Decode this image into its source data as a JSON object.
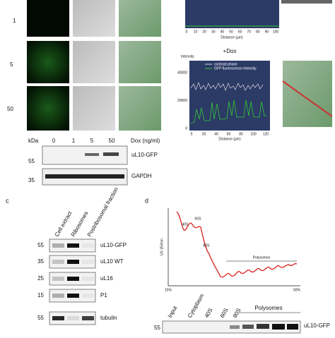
{
  "panel_a": {
    "rows": [
      "1",
      "5",
      "50"
    ],
    "blot": {
      "unit": "kDa",
      "lanes": [
        "0",
        "1",
        "5",
        "50"
      ],
      "lane_title": "Dox (ng/ml)",
      "bands": [
        {
          "marker": "55",
          "label": "uL10-GFP"
        },
        {
          "marker": "35",
          "label": "GAPDH"
        }
      ]
    }
  },
  "panel_b": {
    "top_plot": {
      "xticks": [
        "0",
        "10",
        "20",
        "30",
        "40",
        "50",
        "60",
        "70",
        "80",
        "90",
        "100"
      ],
      "xlabel": "Distance (µm)"
    },
    "dox_plot": {
      "title": "+Dox",
      "ylabel": "Intensity",
      "legend": [
        "contrast phase",
        "GFP fluorescence intensity"
      ],
      "yticks": [
        "40000",
        "20000",
        "0"
      ],
      "xticks": [
        "0",
        "20",
        "40",
        "60",
        "80",
        "100",
        "120"
      ],
      "xlabel": "Distance (µm)"
    }
  },
  "panel_c": {
    "letter": "c",
    "columns": [
      "Cell extract",
      "Ribosomes",
      "Postribosomal fraction"
    ],
    "bands": [
      {
        "marker": "55",
        "label": "uL10-GFP"
      },
      {
        "marker": "35",
        "label": "uL10 WT"
      },
      {
        "marker": "25",
        "label": "uL16"
      },
      {
        "marker": "15",
        "label": "P1"
      },
      {
        "marker": "55",
        "label": "tubulin"
      }
    ]
  },
  "panel_d": {
    "letter": "d",
    "ylabel": "UV 254nm",
    "peaks": [
      "40S",
      "60S",
      "80S"
    ],
    "polysomes": "Polysomes",
    "gradient": [
      "15%",
      "50%"
    ],
    "lanes": [
      "Input",
      "Cytoplasm",
      "40S",
      "60S",
      "80S"
    ],
    "lane_group": "Polysomes",
    "marker": "55",
    "band": "uL10-GFP"
  }
}
